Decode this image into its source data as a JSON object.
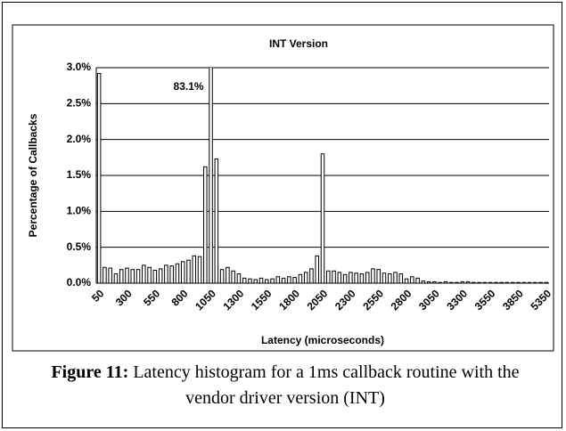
{
  "chart_data": {
    "type": "bar",
    "title": "INT Version",
    "xlabel": "Latency (microseconds)",
    "ylabel": "Percentage of Callbacks",
    "categories": [
      "50",
      null,
      null,
      null,
      null,
      "300",
      null,
      null,
      null,
      null,
      "550",
      null,
      null,
      null,
      null,
      "800",
      null,
      null,
      null,
      null,
      "1050",
      null,
      null,
      null,
      null,
      "1300",
      null,
      null,
      null,
      null,
      "1550",
      null,
      null,
      null,
      null,
      "1800",
      null,
      null,
      null,
      null,
      "2050",
      null,
      null,
      null,
      null,
      "2300",
      null,
      null,
      null,
      null,
      "2550",
      null,
      null,
      null,
      null,
      "2800",
      null,
      null,
      null,
      null,
      "3050",
      null,
      null,
      null,
      null,
      "3300",
      null,
      null,
      null,
      null,
      "3550",
      null,
      null,
      null,
      null,
      "3850",
      null,
      null,
      null,
      null,
      "5350"
    ],
    "values": [
      2.92,
      0.22,
      0.21,
      0.13,
      0.19,
      0.21,
      0.19,
      0.19,
      0.25,
      0.22,
      0.18,
      0.2,
      0.25,
      0.24,
      0.27,
      0.3,
      0.32,
      0.38,
      0.37,
      1.62,
      83.1,
      1.73,
      0.19,
      0.22,
      0.17,
      0.13,
      0.07,
      0.06,
      0.05,
      0.07,
      0.05,
      0.06,
      0.09,
      0.07,
      0.09,
      0.08,
      0.12,
      0.15,
      0.2,
      0.38,
      1.8,
      0.17,
      0.17,
      0.15,
      0.12,
      0.15,
      0.14,
      0.13,
      0.15,
      0.2,
      0.19,
      0.14,
      0.13,
      0.15,
      0.13,
      0.06,
      0.09,
      0.07,
      0.03,
      0.02,
      0.02,
      0.01,
      0.02,
      0.01,
      0.01,
      0.02,
      0.02,
      0.01,
      0.01,
      0.01,
      0.01,
      0.01,
      0.01,
      0.01,
      0.01,
      0.01,
      0.01,
      0.01,
      0.01,
      0.01,
      0.01
    ],
    "value_labels": [
      null,
      null,
      null,
      null,
      null,
      null,
      null,
      null,
      null,
      null,
      null,
      null,
      null,
      null,
      null,
      null,
      null,
      null,
      null,
      null,
      "83.1%",
      null,
      null,
      null,
      null,
      null,
      null,
      null,
      null,
      null,
      null,
      null,
      null,
      null,
      null,
      null,
      null,
      null,
      null,
      null,
      null,
      null,
      null,
      null,
      null,
      null,
      null,
      null,
      null,
      null,
      null,
      null,
      null,
      null,
      null,
      null,
      null,
      null,
      null,
      null,
      null,
      null,
      null,
      null,
      null,
      null,
      null,
      null,
      null,
      null,
      null,
      null,
      null,
      null,
      null,
      null,
      null,
      null,
      null,
      null,
      null
    ],
    "color": "#ffffff",
    "ylim": [
      0,
      3
    ],
    "yticks": [
      {
        "value": 0,
        "label": "0.0%"
      },
      {
        "value": 0.5,
        "label": "0.5%"
      },
      {
        "value": 1,
        "label": "1.0%"
      },
      {
        "value": 1.5,
        "label": "1.5%"
      },
      {
        "value": 2,
        "label": "2.0%"
      },
      {
        "value": 2.5,
        "label": "2.5%"
      },
      {
        "value": 3,
        "label": "3.0%"
      }
    ],
    "grid": true
  },
  "caption": {
    "label": "Figure 11:",
    "text": " Latency histogram for a 1ms callback routine with the vendor driver version (INT)"
  }
}
